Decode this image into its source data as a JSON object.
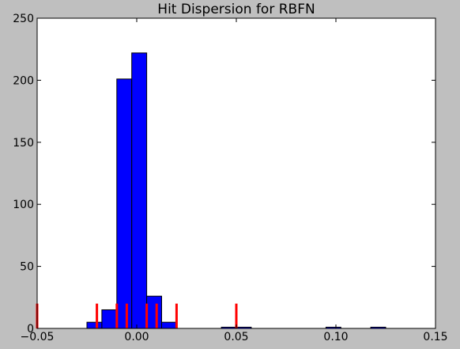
{
  "chart_data": {
    "type": "bar",
    "title": "Hit Dispersion for RBFN",
    "xlabel": "",
    "ylabel": "",
    "xlim": [
      -0.05,
      0.15
    ],
    "ylim": [
      0,
      250
    ],
    "xticks": [
      -0.05,
      0.0,
      0.05,
      0.1,
      0.15
    ],
    "xtick_labels": [
      "−0.05",
      "0.00",
      "0.05",
      "0.10",
      "0.15"
    ],
    "yticks": [
      0,
      50,
      100,
      150,
      200,
      250
    ],
    "ytick_labels": [
      "0",
      "50",
      "100",
      "150",
      "200",
      "250"
    ],
    "grid": false,
    "histogram_bins": [
      {
        "x0": -0.025,
        "x1": -0.0175,
        "count": 5
      },
      {
        "x0": -0.0175,
        "x1": -0.01,
        "count": 15
      },
      {
        "x0": -0.01,
        "x1": -0.0025,
        "count": 201
      },
      {
        "x0": -0.0025,
        "x1": 0.005,
        "count": 222
      },
      {
        "x0": 0.005,
        "x1": 0.0125,
        "count": 26
      },
      {
        "x0": 0.0125,
        "x1": 0.02,
        "count": 5
      },
      {
        "x0": 0.0425,
        "x1": 0.0575,
        "count": 1
      },
      {
        "x0": 0.095,
        "x1": 0.1025,
        "count": 1
      },
      {
        "x0": 0.1175,
        "x1": 0.125,
        "count": 1
      }
    ],
    "marker_lines": {
      "x": [
        -0.05,
        -0.02,
        -0.01,
        -0.005,
        0.005,
        0.01,
        0.02,
        0.05
      ],
      "height": 20
    },
    "colors": {
      "bar_fill": "#0000ff",
      "bar_edge": "#000000",
      "marker": "#ff0000",
      "figure_background": "#bfbfbf",
      "plot_background": "#ffffff"
    }
  }
}
